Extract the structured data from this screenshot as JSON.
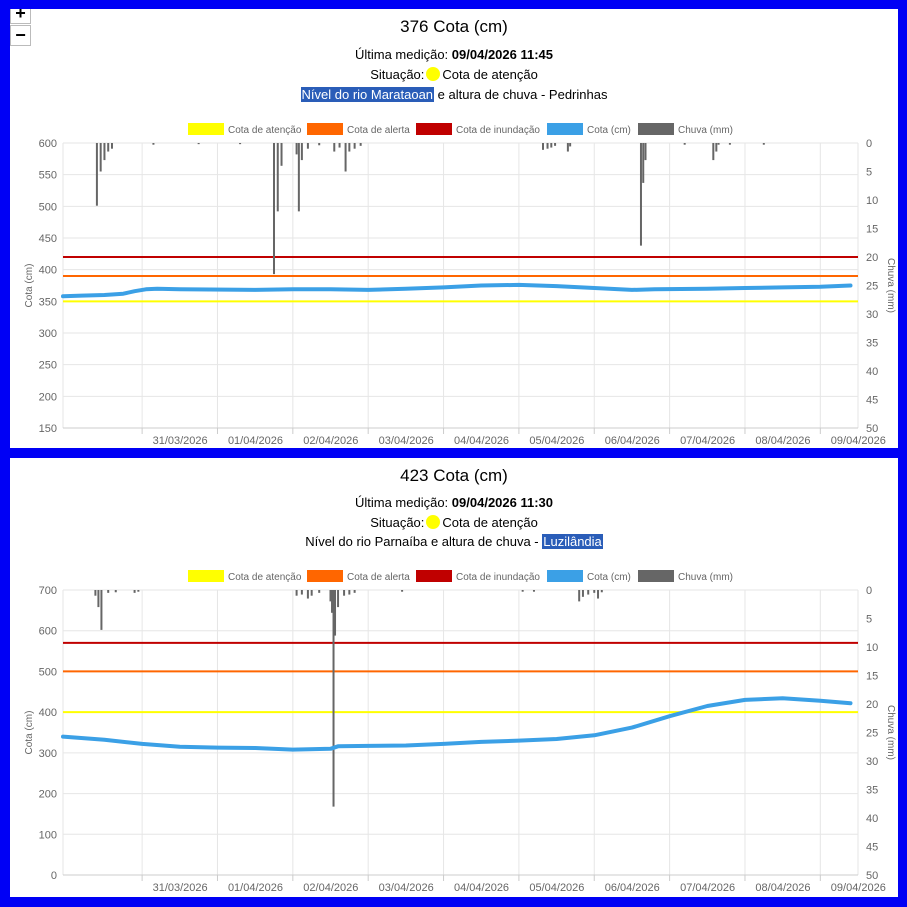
{
  "zoom": {
    "plus": "+",
    "minus": "−"
  },
  "legend": [
    {
      "label": "Cota de atenção",
      "color": "#ffff00"
    },
    {
      "label": "Cota de alerta",
      "color": "#ff6600"
    },
    {
      "label": "Cota de inundação",
      "color": "#c00000"
    },
    {
      "label": "Cota (cm)",
      "color": "#3ba0e6"
    },
    {
      "label": "Chuva (mm)",
      "color": "#666666"
    }
  ],
  "panels": [
    {
      "title": "376 Cota (cm)",
      "last_label": "Última medição:",
      "last_value": "09/04/2026 11:45",
      "situacao_label": "Situação:",
      "situacao_value": "Cota de atenção",
      "situacao_color": "#ffff00",
      "desc_pre": "",
      "desc_hl": "Nível do rio Marataoan",
      "desc_post": " e altura de chuva - Pedrinhas"
    },
    {
      "title": "423 Cota (cm)",
      "last_label": "Última medição:",
      "last_value": "09/04/2026 11:30",
      "situacao_label": "Situação:",
      "situacao_value": "Cota de atenção",
      "situacao_color": "#ffff00",
      "desc_pre": "Nível do rio Parnaíba e altura de chuva - ",
      "desc_hl": "Luzilândia",
      "desc_post": ""
    }
  ],
  "chart_data": [
    {
      "type": "line",
      "ylabel": "Cota (cm)",
      "y2label": "Chuva (mm)",
      "ylim": [
        150,
        600
      ],
      "y_ticks": [
        150,
        200,
        250,
        300,
        350,
        400,
        450,
        500,
        550,
        600
      ],
      "y2lim": [
        0,
        50
      ],
      "y2_reversed": true,
      "y2_ticks": [
        0,
        5,
        10,
        15,
        20,
        25,
        30,
        35,
        40,
        45,
        50
      ],
      "x_range": [
        -1.55,
        9.0
      ],
      "x_ticks": [
        {
          "label": "31/03/2026",
          "x": -0.5
        },
        {
          "label": "01/04/2026",
          "x": 0.5
        },
        {
          "label": "02/04/2026",
          "x": 1.5
        },
        {
          "label": "03/04/2026",
          "x": 2.5
        },
        {
          "label": "04/04/2026",
          "x": 3.5
        },
        {
          "label": "05/04/2026",
          "x": 4.5
        },
        {
          "label": "06/04/2026",
          "x": 5.5
        },
        {
          "label": "07/04/2026",
          "x": 6.5
        },
        {
          "label": "08/04/2026",
          "x": 7.5
        },
        {
          "label": "09/04/2026",
          "x": 8.5
        }
      ],
      "grid": true,
      "legend_position": "top",
      "thresholds": [
        {
          "name": "Cota de atenção",
          "value": 350,
          "color": "#ffff00"
        },
        {
          "name": "Cota de alerta",
          "value": 390,
          "color": "#ff6600"
        },
        {
          "name": "Cota de inundação",
          "value": 420,
          "color": "#c00000"
        }
      ],
      "series": [
        {
          "name": "Cota (cm)",
          "color": "#3ba0e6",
          "x": [
            -1.55,
            -1.3,
            -1.0,
            -0.75,
            -0.6,
            -0.45,
            -0.3,
            0.0,
            1.0,
            1.5,
            2.0,
            2.5,
            3.0,
            3.5,
            4.0,
            4.5,
            5.0,
            5.5,
            6.0,
            6.3,
            7.0,
            7.5,
            8.0,
            8.5,
            8.9
          ],
          "values": [
            358,
            359,
            360,
            362,
            366,
            369,
            370,
            369,
            368,
            369,
            369,
            368,
            370,
            372,
            375,
            376,
            374,
            371,
            368,
            369,
            370,
            371,
            372,
            373,
            375
          ]
        }
      ],
      "rain": {
        "name": "Chuva (mm)",
        "color": "#666666",
        "x": [
          -1.1,
          -1.05,
          -1.0,
          -0.95,
          -0.9,
          -0.35,
          0.25,
          0.8,
          1.25,
          1.3,
          1.35,
          1.55,
          1.58,
          1.62,
          1.7,
          1.85,
          2.05,
          2.12,
          2.2,
          2.25,
          2.32,
          2.4,
          4.82,
          4.88,
          4.93,
          4.98,
          5.15,
          5.18,
          6.12,
          6.15,
          6.18,
          6.7,
          7.08,
          7.12,
          7.15,
          7.3,
          7.75
        ],
        "values": [
          11,
          5,
          3,
          1.5,
          1,
          0.3,
          0.2,
          0.2,
          23,
          12,
          4,
          2,
          12,
          3,
          1,
          0.4,
          1.5,
          0.8,
          5,
          1.5,
          1,
          0.5,
          1.2,
          1,
          0.8,
          0.5,
          1.5,
          0.6,
          18,
          7,
          3,
          0.3,
          3,
          1.5,
          0.3,
          0.3,
          0.3
        ]
      }
    },
    {
      "type": "line",
      "ylabel": "Cota (cm)",
      "y2label": "Chuva (mm)",
      "ylim": [
        0,
        700
      ],
      "y_ticks": [
        0,
        100,
        200,
        300,
        400,
        500,
        600,
        700
      ],
      "y2lim": [
        0,
        50
      ],
      "y2_reversed": true,
      "y2_ticks": [
        0,
        5,
        10,
        15,
        20,
        25,
        30,
        35,
        40,
        45,
        50
      ],
      "x_range": [
        -1.55,
        9.0
      ],
      "x_ticks": [
        {
          "label": "31/03/2026",
          "x": -0.5
        },
        {
          "label": "01/04/2026",
          "x": 0.5
        },
        {
          "label": "02/04/2026",
          "x": 1.5
        },
        {
          "label": "03/04/2026",
          "x": 2.5
        },
        {
          "label": "04/04/2026",
          "x": 3.5
        },
        {
          "label": "05/04/2026",
          "x": 4.5
        },
        {
          "label": "06/04/2026",
          "x": 5.5
        },
        {
          "label": "07/04/2026",
          "x": 6.5
        },
        {
          "label": "08/04/2026",
          "x": 7.5
        },
        {
          "label": "09/04/2026",
          "x": 8.5
        }
      ],
      "grid": true,
      "legend_position": "top",
      "thresholds": [
        {
          "name": "Cota de atenção",
          "value": 400,
          "color": "#ffff00"
        },
        {
          "name": "Cota de alerta",
          "value": 500,
          "color": "#ff6600"
        },
        {
          "name": "Cota de inundação",
          "value": 570,
          "color": "#c00000"
        }
      ],
      "series": [
        {
          "name": "Cota (cm)",
          "color": "#3ba0e6",
          "x": [
            -1.55,
            -1.0,
            -0.5,
            0.0,
            0.5,
            1.0,
            1.5,
            2.0,
            2.1,
            2.5,
            3.0,
            3.5,
            4.0,
            4.5,
            5.0,
            5.5,
            6.0,
            6.5,
            7.0,
            7.5,
            8.0,
            8.5,
            8.9
          ],
          "values": [
            340,
            332,
            322,
            315,
            313,
            312,
            308,
            310,
            316,
            317,
            318,
            322,
            327,
            330,
            334,
            343,
            362,
            390,
            415,
            430,
            434,
            428,
            422
          ]
        }
      ],
      "rain": {
        "name": "Chuva (mm)",
        "color": "#666666",
        "x": [
          -1.12,
          -1.08,
          -1.04,
          -0.95,
          -0.85,
          -0.6,
          -0.55,
          1.55,
          1.62,
          1.7,
          1.75,
          1.85,
          2.0,
          2.02,
          2.04,
          2.06,
          2.1,
          2.18,
          2.25,
          2.32,
          2.95,
          4.55,
          4.7,
          5.3,
          5.35,
          5.42,
          5.5,
          5.55,
          5.6
        ],
        "values": [
          1,
          3,
          7,
          0.5,
          0.4,
          0.5,
          0.3,
          1,
          0.8,
          1.5,
          1,
          0.5,
          2,
          4,
          38,
          8,
          3,
          1,
          0.8,
          0.5,
          0.3,
          0.3,
          0.3,
          2,
          1.2,
          0.8,
          0.5,
          1.5,
          0.4
        ]
      }
    }
  ]
}
